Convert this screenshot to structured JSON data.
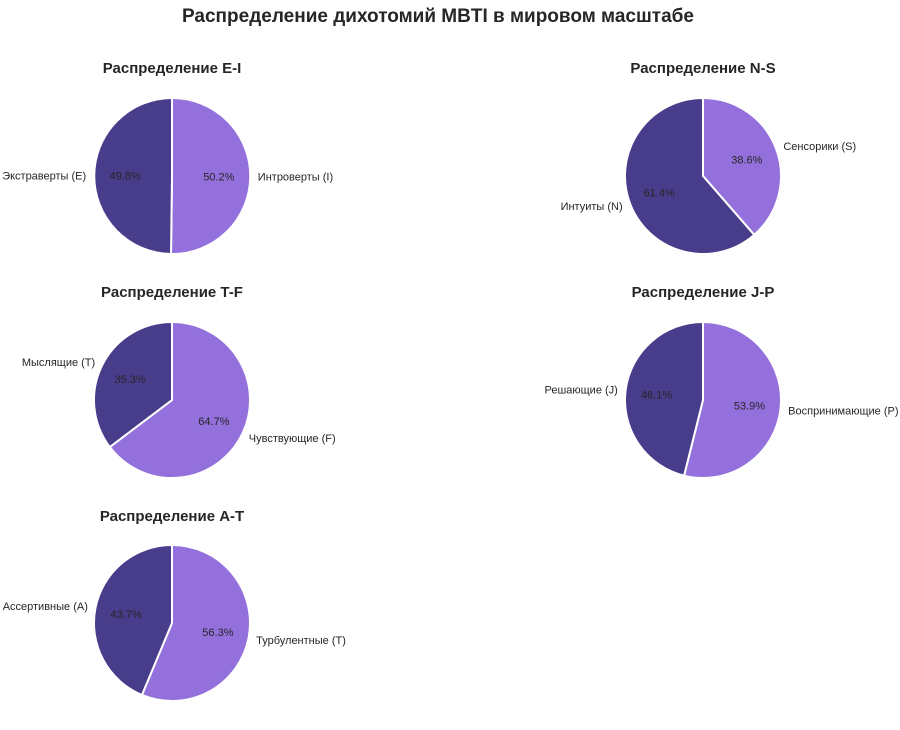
{
  "title": "Распределение дихотомий MBTI в мировом масштабе",
  "chart_data": [
    {
      "type": "pie",
      "title": "Распределение E-I",
      "labels": [
        "Интроверты (I)",
        "Экстраверты (E)"
      ],
      "values": [
        50.2,
        49.8
      ],
      "pct_labels": [
        "50.2%",
        "49.8%"
      ],
      "colors": [
        "#9370db",
        "#483d8b"
      ]
    },
    {
      "type": "pie",
      "title": "Распределение N-S",
      "labels": [
        "Сенсорики (S)",
        "Интуиты (N)"
      ],
      "values": [
        38.6,
        61.4
      ],
      "pct_labels": [
        "38.6%",
        "61.4%"
      ],
      "colors": [
        "#9370db",
        "#483d8b"
      ]
    },
    {
      "type": "pie",
      "title": "Распределение T-F",
      "labels": [
        "Чувствующие (F)",
        "Мыслящие (T)"
      ],
      "values": [
        64.7,
        35.3
      ],
      "pct_labels": [
        "64.7%",
        "35.3%"
      ],
      "colors": [
        "#9370db",
        "#483d8b"
      ]
    },
    {
      "type": "pie",
      "title": "Распределение J-P",
      "labels": [
        "Воспринимающие (P)",
        "Решающие (J)"
      ],
      "values": [
        53.9,
        46.1
      ],
      "pct_labels": [
        "53.9%",
        "46.1%"
      ],
      "colors": [
        "#9370db",
        "#483d8b"
      ]
    },
    {
      "type": "pie",
      "title": "Распределение A-T",
      "labels": [
        "Турбулентные (T)",
        "Ассертивные (A)"
      ],
      "values": [
        56.3,
        43.7
      ],
      "pct_labels": [
        "56.3%",
        "43.7%"
      ],
      "colors": [
        "#9370db",
        "#483d8b"
      ]
    }
  ]
}
